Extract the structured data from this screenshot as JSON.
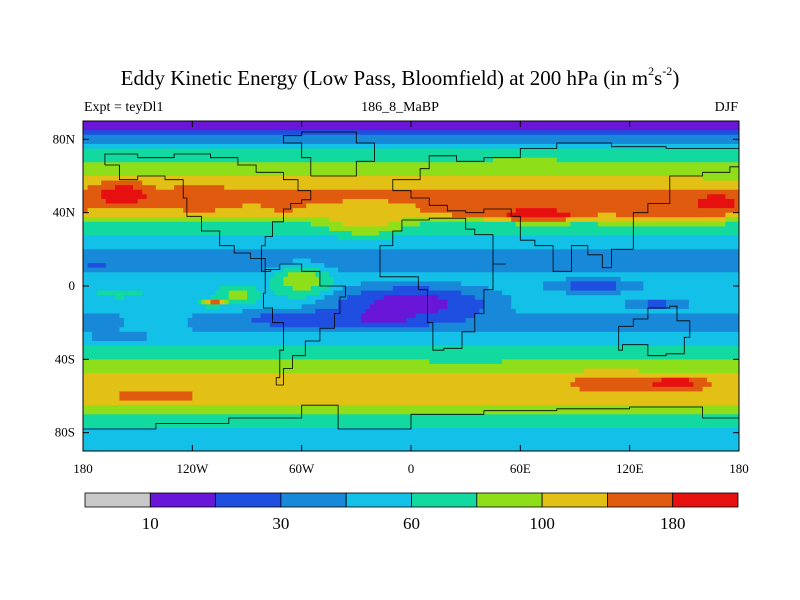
{
  "title": {
    "text": "Eddy Kinetic Energy (Low Pass, Bloomfield) at 200 hPa (in m",
    "sup1": "2",
    "mid": "s",
    "sup2": "-2",
    "end": ")"
  },
  "subtitle": {
    "left": "Expt = teyDl1",
    "center": "186_8_MaBP",
    "right": "DJF"
  },
  "chart_data": {
    "type": "heatmap",
    "title": "Eddy Kinetic Energy (Low Pass, Bloomfield) at 200 hPa (in m2s-2)",
    "x_range": [
      -180,
      180
    ],
    "y_range": [
      -90,
      90
    ],
    "x_ticks": [
      {
        "value": -180,
        "label": "180"
      },
      {
        "value": -120,
        "label": "120W"
      },
      {
        "value": -60,
        "label": "60W"
      },
      {
        "value": 0,
        "label": "0"
      },
      {
        "value": 60,
        "label": "60E"
      },
      {
        "value": 120,
        "label": "120E"
      },
      {
        "value": 180,
        "label": "180"
      }
    ],
    "y_ticks": [
      {
        "value": 80,
        "label": "80N"
      },
      {
        "value": 40,
        "label": "40N"
      },
      {
        "value": 0,
        "label": "0"
      },
      {
        "value": -40,
        "label": "40S"
      },
      {
        "value": -80,
        "label": "80S"
      }
    ],
    "colorbar": {
      "colors": [
        "#c8c8c8",
        "#6a16d9",
        "#1f4fe0",
        "#1888d8",
        "#12c0e8",
        "#12d9a0",
        "#8ede1a",
        "#e3c015",
        "#e05a0f",
        "#e61010"
      ],
      "boundary_labels": [
        {
          "after_box": 1,
          "label": "10"
        },
        {
          "after_box": 3,
          "label": "30"
        },
        {
          "after_box": 5,
          "label": "60"
        },
        {
          "after_box": 7,
          "label": "100"
        },
        {
          "after_box": 9,
          "label": "180"
        }
      ]
    },
    "zonal_base_levels": [
      {
        "lat": 90,
        "level": 1
      },
      {
        "lat": 85,
        "level": 1
      },
      {
        "lat": 80,
        "level": 3
      },
      {
        "lat": 72,
        "level": 5
      },
      {
        "lat": 64,
        "level": 6
      },
      {
        "lat": 56,
        "level": 7
      },
      {
        "lat": 48,
        "level": 8
      },
      {
        "lat": 40,
        "level": 7
      },
      {
        "lat": 32,
        "level": 5
      },
      {
        "lat": 24,
        "level": 4
      },
      {
        "lat": 16,
        "level": 3
      },
      {
        "lat": 10,
        "level": 3
      },
      {
        "lat": 4,
        "level": 4
      },
      {
        "lat": -4,
        "level": 4
      },
      {
        "lat": -12,
        "level": 4
      },
      {
        "lat": -20,
        "level": 3
      },
      {
        "lat": -28,
        "level": 4
      },
      {
        "lat": -36,
        "level": 5
      },
      {
        "lat": -44,
        "level": 6
      },
      {
        "lat": -52,
        "level": 7
      },
      {
        "lat": -60,
        "level": 7
      },
      {
        "lat": -68,
        "level": 6
      },
      {
        "lat": -74,
        "level": 5
      },
      {
        "lat": -82,
        "level": 4
      },
      {
        "lat": -90,
        "level": 4
      }
    ],
    "anomalies": [
      {
        "lon": -158,
        "lat": 50,
        "rlon": 24,
        "rlat": 11,
        "level": 9
      },
      {
        "lon": -116,
        "lat": 48,
        "rlon": 28,
        "rlat": 12,
        "level": 8
      },
      {
        "lon": -70,
        "lat": 46,
        "rlon": 14,
        "rlat": 10,
        "level": 8
      },
      {
        "lon": 40,
        "lat": 41,
        "rlon": 60,
        "rlat": 6,
        "level": 8
      },
      {
        "lon": 72,
        "lat": 39,
        "rlon": 40,
        "rlat": 6,
        "level": 9
      },
      {
        "lon": 138,
        "lat": 40,
        "rlon": 55,
        "rlat": 9,
        "level": 8
      },
      {
        "lon": 168,
        "lat": 45,
        "rlon": 20,
        "rlat": 8,
        "level": 9
      },
      {
        "lon": 62,
        "lat": 65,
        "rlon": 28,
        "rlat": 7,
        "level": 6
      },
      {
        "lon": -25,
        "lat": 38,
        "rlon": 35,
        "rlat": 15,
        "level": 7
      },
      {
        "lon": 0,
        "lat": -10,
        "rlon": 70,
        "rlat": 16,
        "level": 1
      },
      {
        "lon": -25,
        "lat": -18,
        "rlon": 40,
        "rlat": 8,
        "level": 1
      },
      {
        "lon": -60,
        "lat": -18,
        "rlon": 55,
        "rlat": 8,
        "level": 2
      },
      {
        "lon": -60,
        "lat": 3,
        "rlon": 25,
        "rlat": 14,
        "level": 6
      },
      {
        "lon": -95,
        "lat": -5,
        "rlon": 18,
        "rlat": 7,
        "level": 6
      },
      {
        "lon": -108,
        "lat": -9,
        "rlon": 10,
        "rlat": 3,
        "level": 8
      },
      {
        "lon": -168,
        "lat": 11,
        "rlon": 18,
        "rlat": 4,
        "level": 2
      },
      {
        "lon": -150,
        "lat": 11,
        "rlon": 30,
        "rlat": 5,
        "level": 3
      },
      {
        "lon": -160,
        "lat": -4,
        "rlon": 22,
        "rlat": 4,
        "level": 5
      },
      {
        "lon": -160,
        "lat": -28,
        "rlon": 30,
        "rlat": 4,
        "level": 3
      },
      {
        "lon": -140,
        "lat": -20,
        "rlon": 30,
        "rlat": 6,
        "level": 4
      },
      {
        "lon": 100,
        "lat": 0,
        "rlon": 40,
        "rlat": 6,
        "level": 2
      },
      {
        "lon": 135,
        "lat": -10,
        "rlon": 25,
        "rlat": 4,
        "level": 2
      },
      {
        "lon": 60,
        "lat": 15,
        "rlon": 30,
        "rlat": 6,
        "level": 3
      },
      {
        "lon": 30,
        "lat": -40,
        "rlon": 30,
        "rlat": 5,
        "level": 5
      },
      {
        "lon": 110,
        "lat": -53,
        "rlon": 40,
        "rlat": 9,
        "level": 8
      },
      {
        "lon": 145,
        "lat": -53,
        "rlon": 28,
        "rlat": 6,
        "level": 9
      },
      {
        "lon": -140,
        "lat": -60,
        "rlon": 40,
        "rlat": 6,
        "level": 8
      },
      {
        "lon": 170,
        "lat": 60,
        "rlon": 15,
        "rlat": 6,
        "level": 6
      }
    ]
  }
}
